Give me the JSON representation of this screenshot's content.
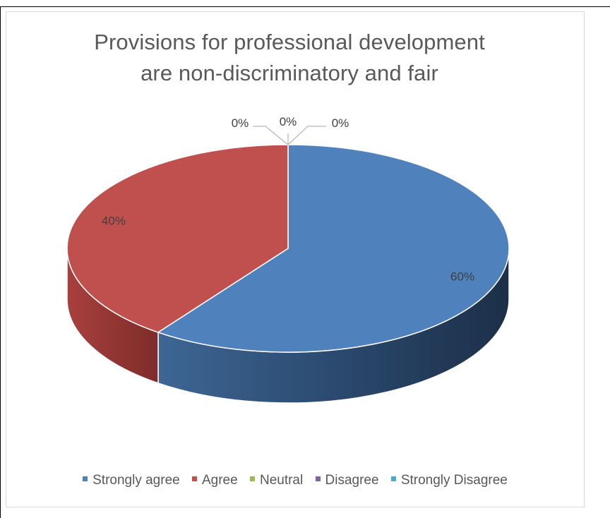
{
  "chart_data": {
    "type": "pie",
    "title": "Provisions for professional development are non-discriminatory and fair",
    "title_lines": [
      "Provisions for professional development",
      "are non-discriminatory and fair"
    ],
    "categories": [
      "Strongly agree",
      "Agree",
      "Neutral",
      "Disagree",
      "Strongly Disagree"
    ],
    "values": [
      60,
      40,
      0,
      0,
      0
    ],
    "data_labels": [
      "60%",
      "40%",
      "0%",
      "0%",
      "0%"
    ],
    "colors": [
      "#4f81bd",
      "#c0504d",
      "#9bbb59",
      "#8064a2",
      "#4bacc6"
    ],
    "style": "3d",
    "legend_position": "bottom"
  }
}
